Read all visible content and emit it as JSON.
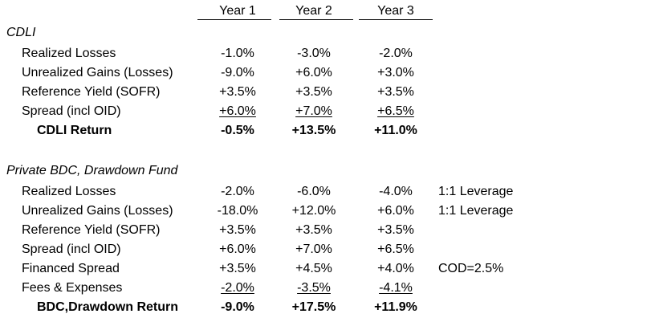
{
  "headers": [
    "Year 1",
    "Year 2",
    "Year 3"
  ],
  "sections": [
    {
      "title": "CDLI",
      "rows": [
        {
          "label": "Realized Losses",
          "values": [
            "-1.0%",
            "-3.0%",
            "-2.0%"
          ],
          "note": ""
        },
        {
          "label": "Unrealized Gains (Losses)",
          "values": [
            "-9.0%",
            "+6.0%",
            "+3.0%"
          ],
          "note": ""
        },
        {
          "label": "Reference Yield (SOFR)",
          "values": [
            "+3.5%",
            "+3.5%",
            "+3.5%"
          ],
          "note": ""
        },
        {
          "label": "Spread (incl OID)",
          "values": [
            "+6.0%",
            "+7.0%",
            "+6.5%"
          ],
          "note": ""
        }
      ],
      "total": {
        "label": "CDLI Return",
        "values": [
          "-0.5%",
          "+13.5%",
          "+11.0%"
        ]
      }
    },
    {
      "title": "Private BDC, Drawdown Fund",
      "rows": [
        {
          "label": "Realized Losses",
          "values": [
            "-2.0%",
            "-6.0%",
            "-4.0%"
          ],
          "note": "1:1 Leverage"
        },
        {
          "label": "Unrealized Gains (Losses)",
          "values": [
            "-18.0%",
            "+12.0%",
            "+6.0%"
          ],
          "note": "1:1 Leverage"
        },
        {
          "label": "Reference Yield (SOFR)",
          "values": [
            "+3.5%",
            "+3.5%",
            "+3.5%"
          ],
          "note": ""
        },
        {
          "label": "Spread (incl OID)",
          "values": [
            "+6.0%",
            "+7.0%",
            "+6.5%"
          ],
          "note": ""
        },
        {
          "label": "Financed Spread",
          "values": [
            "+3.5%",
            "+4.5%",
            "+4.0%"
          ],
          "note": "COD=2.5%"
        },
        {
          "label": "Fees & Expenses",
          "values": [
            "-2.0%",
            "-3.5%",
            "-4.1%"
          ],
          "note": ""
        }
      ],
      "total": {
        "label": "BDC,Drawdown Return",
        "values": [
          "-9.0%",
          "+17.5%",
          "+11.9%"
        ]
      }
    }
  ]
}
